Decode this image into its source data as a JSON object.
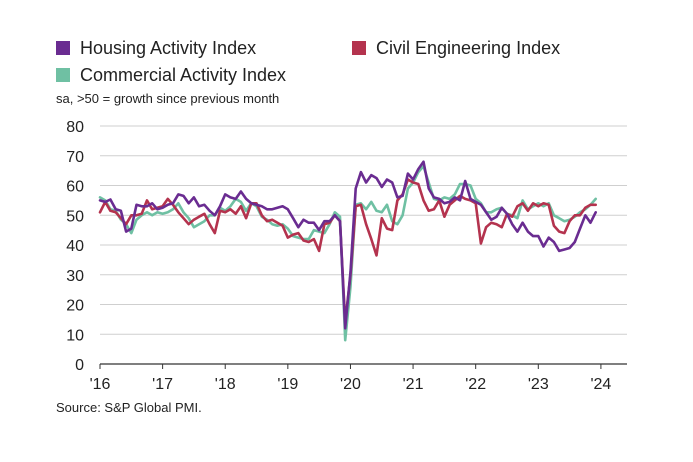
{
  "chart_data": {
    "type": "line",
    "subtitle": "sa, >50 = growth since previous month",
    "source": "Source: S&P Global PMI.",
    "ylim": [
      0,
      80
    ],
    "yticks": [
      0,
      10,
      20,
      30,
      40,
      50,
      60,
      70,
      80
    ],
    "xlim": [
      2016.0,
      2024.4167
    ],
    "xticks": [
      {
        "label": "'16",
        "value": 2016
      },
      {
        "label": "'17",
        "value": 2017
      },
      {
        "label": "'18",
        "value": 2018
      },
      {
        "label": "'19",
        "value": 2019
      },
      {
        "label": "'20",
        "value": 2020
      },
      {
        "label": "'21",
        "value": 2021
      },
      {
        "label": "'22",
        "value": 2022
      },
      {
        "label": "'23",
        "value": 2023
      },
      {
        "label": "'24",
        "value": 2024
      }
    ],
    "x_start": 2016.0,
    "x_step_months": 1,
    "series": [
      {
        "name": "Housing Activity Index",
        "color": "#6a2c91",
        "values": [
          55.0,
          54.5,
          55.3,
          52.0,
          51.5,
          44.5,
          45.5,
          53.5,
          53.0,
          53.0,
          54.0,
          52.0,
          52.5,
          53.5,
          54.0,
          57.0,
          56.5,
          54.0,
          56.0,
          53.0,
          53.5,
          51.5,
          50.0,
          53.0,
          57.0,
          56.0,
          55.5,
          58.0,
          55.5,
          54.0,
          53.5,
          53.0,
          52.0,
          52.0,
          52.5,
          53.0,
          52.0,
          49.0,
          46.0,
          48.5,
          47.5,
          47.5,
          45.0,
          48.0,
          48.0,
          50.0,
          48.0,
          12.0,
          31.0,
          59.0,
          64.5,
          61.0,
          63.5,
          62.5,
          59.5,
          62.0,
          61.0,
          56.0,
          56.5,
          64.0,
          62.0,
          65.5,
          68.0,
          59.0,
          56.0,
          55.5,
          54.0,
          54.5,
          56.0,
          55.0,
          61.5,
          55.5,
          54.5,
          53.5,
          51.0,
          48.5,
          49.5,
          52.5,
          50.5,
          47.0,
          44.5,
          47.5,
          44.5,
          43.0,
          43.0,
          39.5,
          42.5,
          41.0,
          38.0,
          38.5,
          39.0,
          41.0,
          45.5,
          50.0,
          47.5,
          51.0
        ]
      },
      {
        "name": "Civil Engineering Index",
        "color": "#b4334e",
        "values": [
          51.0,
          54.5,
          51.5,
          51.0,
          49.0,
          47.0,
          50.0,
          50.0,
          50.5,
          55.0,
          52.0,
          52.5,
          53.0,
          55.5,
          53.5,
          51.0,
          49.0,
          47.0,
          48.5,
          49.5,
          50.5,
          47.0,
          44.0,
          51.5,
          51.0,
          52.0,
          50.5,
          53.0,
          49.0,
          54.0,
          54.0,
          50.0,
          48.0,
          48.5,
          47.5,
          46.5,
          42.5,
          43.5,
          44.0,
          41.5,
          41.0,
          42.0,
          38.0,
          47.0,
          47.5,
          50.0,
          48.0,
          14.0,
          30.0,
          53.0,
          53.5,
          47.0,
          42.0,
          36.5,
          49.0,
          45.5,
          45.0,
          55.0,
          57.0,
          62.0,
          61.0,
          60.5,
          55.0,
          51.5,
          52.0,
          55.0,
          49.5,
          53.5,
          55.0,
          56.5,
          55.5,
          55.0,
          54.0,
          40.5,
          46.0,
          47.5,
          47.0,
          46.0,
          50.5,
          49.5,
          53.0,
          54.0,
          51.5,
          54.0,
          53.0,
          54.0,
          53.5,
          46.5,
          44.5,
          44.0,
          48.0,
          50.0,
          50.0,
          52.5,
          53.5,
          53.5
        ]
      },
      {
        "name": "Commercial Activity Index",
        "color": "#6fc0a3",
        "values": [
          56.0,
          55.0,
          52.0,
          51.5,
          48.5,
          47.0,
          44.0,
          48.5,
          50.0,
          51.0,
          50.0,
          51.0,
          50.5,
          51.0,
          52.0,
          54.0,
          51.0,
          49.0,
          46.0,
          47.0,
          48.0,
          50.0,
          50.0,
          52.5,
          51.5,
          53.0,
          55.5,
          54.5,
          51.5,
          54.0,
          53.0,
          49.5,
          48.5,
          47.0,
          46.5,
          47.0,
          45.5,
          43.0,
          42.5,
          42.0,
          42.0,
          45.0,
          44.5,
          44.0,
          47.0,
          51.0,
          49.5,
          8.0,
          26.0,
          53.5,
          54.0,
          52.0,
          54.5,
          51.5,
          51.0,
          53.5,
          48.0,
          47.0,
          50.0,
          59.0,
          61.0,
          64.5,
          66.5,
          61.0,
          55.5,
          55.0,
          56.0,
          55.5,
          57.0,
          60.5,
          60.5,
          60.0,
          55.5,
          54.0,
          51.0,
          51.0,
          52.0,
          52.5,
          50.5,
          50.0,
          49.0,
          55.0,
          52.0,
          53.0,
          54.0,
          53.0,
          54.0,
          50.0,
          49.0,
          48.0,
          48.5,
          49.5,
          51.0,
          52.0,
          53.5,
          55.5
        ]
      }
    ]
  }
}
